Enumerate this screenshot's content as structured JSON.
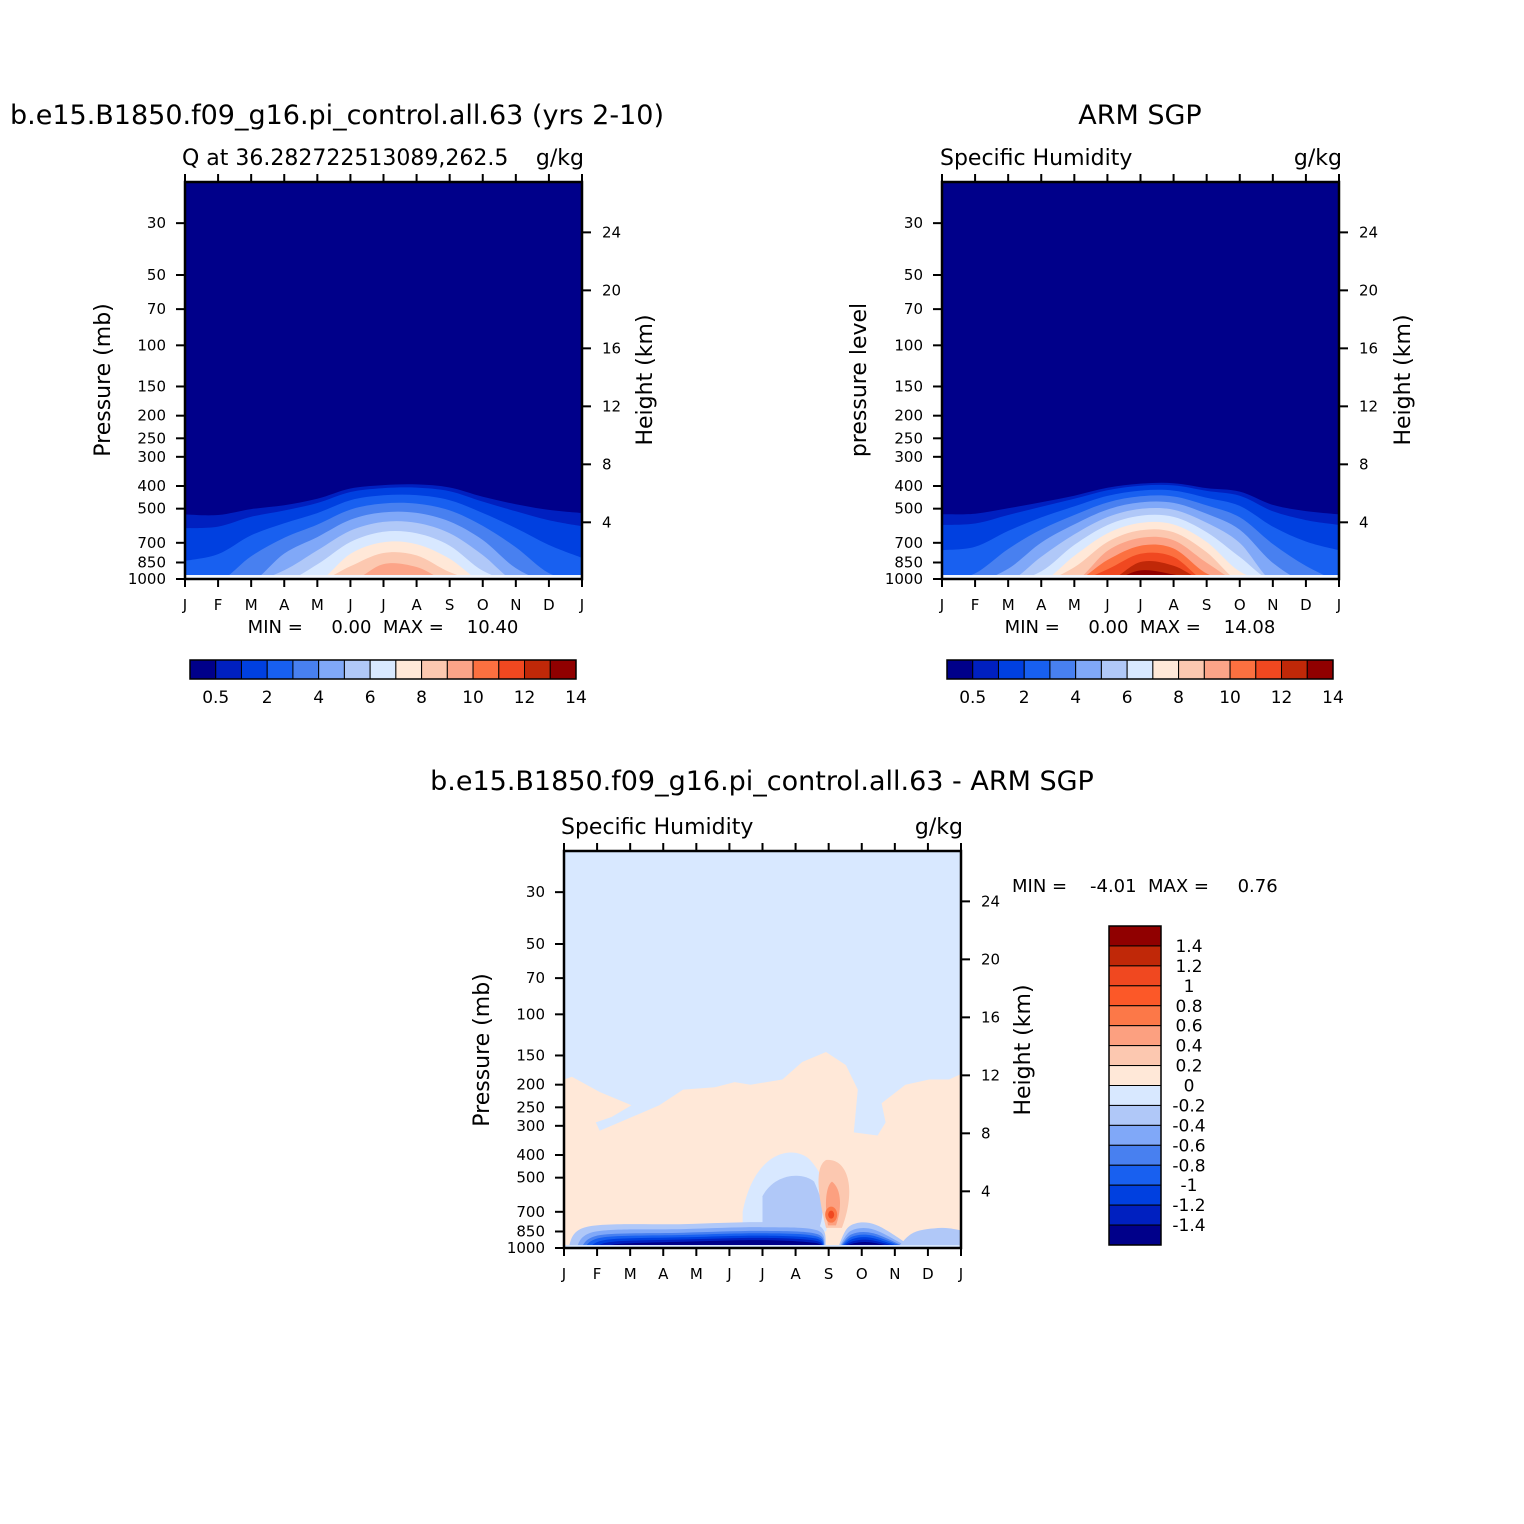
{
  "months": [
    "J",
    "F",
    "M",
    "A",
    "M",
    "J",
    "J",
    "A",
    "S",
    "O",
    "N",
    "D",
    "J"
  ],
  "pressure_ticks": [
    30,
    50,
    70,
    100,
    150,
    200,
    250,
    300,
    400,
    500,
    700,
    850,
    1000
  ],
  "height_ticks": [
    4,
    8,
    12,
    16,
    20,
    24
  ],
  "yaxis_right_label": "Height (km)",
  "chart_data": [
    {
      "type": "contour",
      "title": "b.e15.B1850.f09_g16.pi_control.all.63 (yrs 2-10)",
      "subtitle_left": "Q at 36.282722513089,262.5",
      "units": "g/kg",
      "ylabel": "Pressure (mb)",
      "stats": "MIN =     0.00  MAX =    10.40",
      "min": 0.0,
      "max": 10.4,
      "colorbar_levels": [
        0.5,
        1,
        2,
        3,
        4,
        5,
        6,
        7,
        8,
        9,
        10,
        11,
        12,
        13,
        14
      ],
      "colorbar_labels": [
        "0.5",
        "2",
        "4",
        "6",
        "8",
        "10",
        "12",
        "14"
      ],
      "colors": [
        "#00008a",
        "#0020c0",
        "#0040e0",
        "#1860f0",
        "#4880f0",
        "#80a8f8",
        "#b0c8f8",
        "#d8e8ff",
        "#ffe8d8",
        "#fcc8b0",
        "#fca488",
        "#fc7040",
        "#f04820",
        "#c02808",
        "#900000"
      ],
      "moisture_lid_hPa": [
        480,
        490,
        475,
        465,
        440,
        400,
        388,
        385,
        395,
        430,
        455,
        470,
        475
      ],
      "peak_gkg": [
        2.5,
        2.8,
        4.0,
        5.5,
        7.0,
        9.0,
        10.3,
        10.0,
        8.5,
        6.5,
        4.5,
        3.2,
        2.6
      ]
    },
    {
      "type": "contour",
      "title": "ARM SGP",
      "subtitle_left": "Specific Humidity",
      "units": "g/kg",
      "ylabel": "pressure level",
      "stats": "MIN =     0.00  MAX =    14.08",
      "min": 0.0,
      "max": 14.08,
      "colorbar_levels": [
        0.5,
        1,
        2,
        3,
        4,
        5,
        6,
        7,
        8,
        9,
        10,
        11,
        12,
        13,
        14
      ],
      "colorbar_labels": [
        "0.5",
        "2",
        "4",
        "6",
        "8",
        "10",
        "12",
        "14"
      ],
      "colors": [
        "#00008a",
        "#0020c0",
        "#0040e0",
        "#1860f0",
        "#4880f0",
        "#80a8f8",
        "#b0c8f8",
        "#d8e8ff",
        "#ffe8d8",
        "#fcc8b0",
        "#fca488",
        "#fc7040",
        "#f04820",
        "#c02808",
        "#900000"
      ],
      "moisture_lid_hPa": [
        490,
        490,
        475,
        455,
        430,
        400,
        385,
        383,
        400,
        410,
        460,
        480,
        490
      ],
      "peak_gkg": [
        3.0,
        3.2,
        4.5,
        6.5,
        9.0,
        12.0,
        14.0,
        13.5,
        10.5,
        7.5,
        4.8,
        3.5,
        3.0
      ]
    },
    {
      "type": "contour",
      "title": "b.e15.B1850.f09_g16.pi_control.all.63 - ARM SGP",
      "subtitle_left": "Specific Humidity",
      "units": "g/kg",
      "ylabel": "Pressure (mb)",
      "stats": "MIN =    -4.01  MAX =     0.76",
      "min": -4.01,
      "max": 0.76,
      "colorbar_labels": [
        "1.4",
        "1.2",
        "1",
        "0.8",
        "0.6",
        "0.4",
        "0.2",
        "0",
        "-0.2",
        "-0.4",
        "-0.6",
        "-0.8",
        "-1",
        "-1.2",
        "-1.4"
      ],
      "colors": [
        "#900000",
        "#c02808",
        "#f04820",
        "#fc5828",
        "#fc7848",
        "#fca080",
        "#fcc8b0",
        "#ffe8d8",
        "#d8e8ff",
        "#b0c8f8",
        "#80a8f8",
        "#4880f0",
        "#1860f0",
        "#0040e0",
        "#0020c0",
        "#00008a"
      ]
    }
  ]
}
